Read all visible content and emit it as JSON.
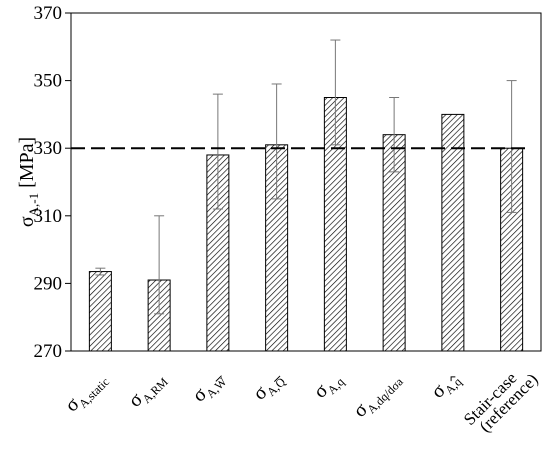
{
  "chart_data": {
    "type": "bar",
    "ylabel_main": "σ",
    "ylabel_sub": "A,-1",
    "ylabel_unit": " [MPa]",
    "xlabel": "",
    "ylim": [
      270,
      370
    ],
    "yticks": [
      270,
      290,
      310,
      330,
      350,
      370
    ],
    "grid": false,
    "reference_line": {
      "value": 330,
      "style": "dashed"
    },
    "categories": [
      {
        "main": "σ",
        "sub": "A,static",
        "accent": ""
      },
      {
        "main": "σ",
        "sub": "A,RM",
        "accent": ""
      },
      {
        "main": "σ",
        "sub": "A,W",
        "accent": "overline"
      },
      {
        "main": "σ",
        "sub": "A,Q",
        "accent": "overline"
      },
      {
        "main": "σ",
        "sub": "A,q",
        "accent": ""
      },
      {
        "main": "σ",
        "sub": "A,dq/dσa",
        "accent": ""
      },
      {
        "main": "σ",
        "sub": "A,q",
        "accent": "hat"
      },
      {
        "main": "Stair-case\n(reference)",
        "sub": "",
        "accent": ""
      }
    ],
    "values": [
      293.5,
      291,
      328,
      331,
      345,
      334,
      340,
      330
    ],
    "error_upper": [
      294.5,
      310,
      346,
      349,
      362,
      345,
      340,
      350
    ],
    "error_lower": [
      292.5,
      281,
      312,
      315,
      331,
      323,
      340,
      311
    ],
    "bar_fill": "diagonal-hatch",
    "colors": {
      "axis": "#000000",
      "hatch": "#000000",
      "error_bar": "#777777"
    }
  }
}
